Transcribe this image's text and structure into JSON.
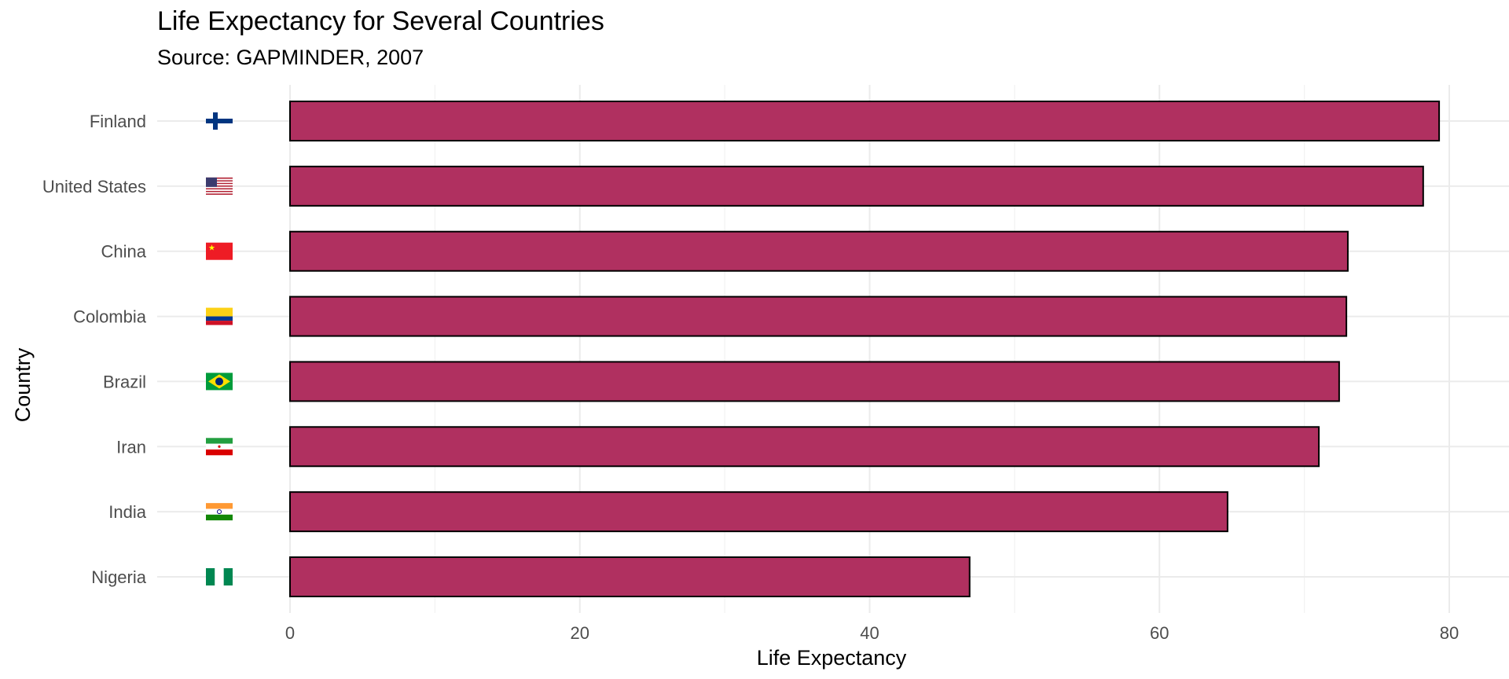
{
  "chart_data": {
    "type": "bar",
    "orientation": "horizontal",
    "title": "Life Expectancy for Several Countries",
    "subtitle": "Source: GAPMINDER, 2007",
    "xlabel": "Life Expectancy",
    "ylabel": "Country",
    "categories": [
      "Finland",
      "United States",
      "China",
      "Colombia",
      "Brazil",
      "Iran",
      "India",
      "Nigeria"
    ],
    "values": [
      79.3,
      78.2,
      73.0,
      72.9,
      72.4,
      71.0,
      64.7,
      46.9
    ],
    "flags": [
      "flag-finland-icon",
      "flag-united-states-icon",
      "flag-china-icon",
      "flag-colombia-icon",
      "flag-brazil-icon",
      "flag-iran-icon",
      "flag-india-icon",
      "flag-nigeria-icon"
    ],
    "xlim": [
      -9,
      84
    ],
    "xticks": [
      0,
      20,
      40,
      60,
      80
    ],
    "grid": true,
    "legend": "none",
    "bar_color": "#b03060",
    "bar_outline": "#000000"
  }
}
